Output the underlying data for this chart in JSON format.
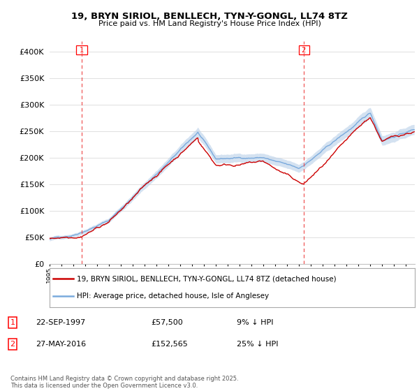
{
  "title": "19, BRYN SIRIOL, BENLLECH, TYN-Y-GONGL, LL74 8TZ",
  "subtitle": "Price paid vs. HM Land Registry's House Price Index (HPI)",
  "legend_line1": "19, BRYN SIRIOL, BENLLECH, TYN-Y-GONGL, LL74 8TZ (detached house)",
  "legend_line2": "HPI: Average price, detached house, Isle of Anglesey",
  "annotation1_label": "1",
  "annotation1_date": "22-SEP-1997",
  "annotation1_price": "£57,500",
  "annotation1_hpi": "9% ↓ HPI",
  "annotation2_label": "2",
  "annotation2_date": "27-MAY-2016",
  "annotation2_price": "£152,565",
  "annotation2_hpi": "25% ↓ HPI",
  "footnote": "Contains HM Land Registry data © Crown copyright and database right 2025.\nThis data is licensed under the Open Government Licence v3.0.",
  "property_color": "#cc0000",
  "hpi_color": "#7aaadd",
  "hpi_fill_color": "#b8cfe8",
  "background_color": "#ffffff",
  "grid_color": "#e0e0e0",
  "ylim": [
    0,
    420000
  ],
  "yticks": [
    0,
    50000,
    100000,
    150000,
    200000,
    250000,
    300000,
    350000,
    400000
  ],
  "xlim_start": 1995.25,
  "xlim_end": 2025.75,
  "t1_x": 1997.72,
  "t2_x": 2016.42
}
